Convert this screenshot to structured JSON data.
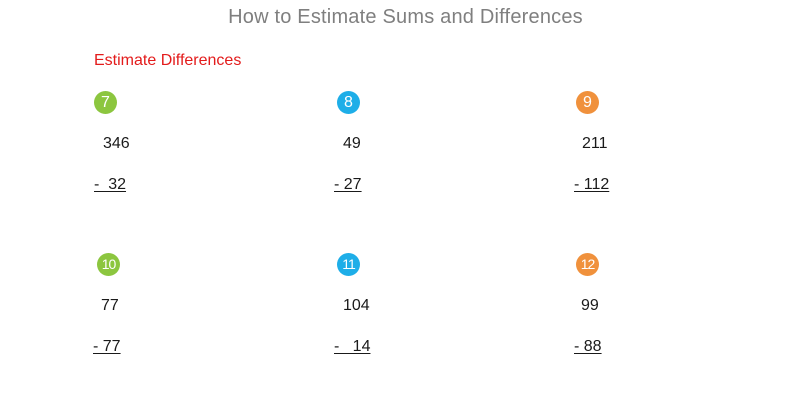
{
  "page": {
    "title": "How to Estimate Sums and Differences",
    "section_heading": "Estimate Differences"
  },
  "colors": {
    "title": "#7f7f7f",
    "heading": "#e31b1b",
    "green": "#8cc63f",
    "blue": "#1eaee8",
    "orange": "#f0913c"
  },
  "problems": [
    {
      "number": "7",
      "color": "green",
      "top": "346",
      "bottom": "-  32"
    },
    {
      "number": "8",
      "color": "blue",
      "top": "49",
      "bottom": "- 27"
    },
    {
      "number": "9",
      "color": "orange",
      "top": "211",
      "bottom": "- 112"
    },
    {
      "number": "10",
      "color": "green",
      "top": "77",
      "bottom": "- 77"
    },
    {
      "number": "11",
      "color": "blue",
      "top": "104",
      "bottom": "-   14"
    },
    {
      "number": "12",
      "color": "orange",
      "top": "99",
      "bottom": "- 88"
    }
  ]
}
